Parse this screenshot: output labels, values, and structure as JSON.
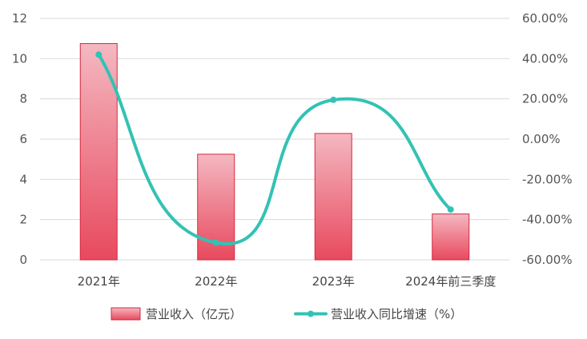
{
  "chart_data": {
    "type": "bar",
    "categories": [
      "2021年",
      "2022年",
      "2023年",
      "2024年前三季度"
    ],
    "series": [
      {
        "name": "营业收入（亿元）",
        "type": "bar",
        "axis": "left",
        "values": [
          10.75,
          5.25,
          6.28,
          2.28
        ]
      },
      {
        "name": "营业收入同比增速（%）",
        "type": "line",
        "axis": "right",
        "values": [
          42.0,
          -51.5,
          19.5,
          -35.0
        ]
      }
    ],
    "y_left": {
      "min": 0,
      "max": 12,
      "ticks": [
        "0",
        "2",
        "4",
        "6",
        "8",
        "10",
        "12"
      ]
    },
    "y_right": {
      "min": -60,
      "max": 60,
      "ticks": [
        "-60.00%",
        "-40.00%",
        "-20.00%",
        "0.00%",
        "20.00%",
        "40.00%",
        "60.00%"
      ]
    },
    "grid": true,
    "legend_position": "bottom",
    "colors": {
      "bar_top": "#f4b8c1",
      "bar_bottom": "#e8495e",
      "bar_border": "#d5283f",
      "line": "#33c2b4",
      "grid": "#d9d9d9"
    }
  }
}
